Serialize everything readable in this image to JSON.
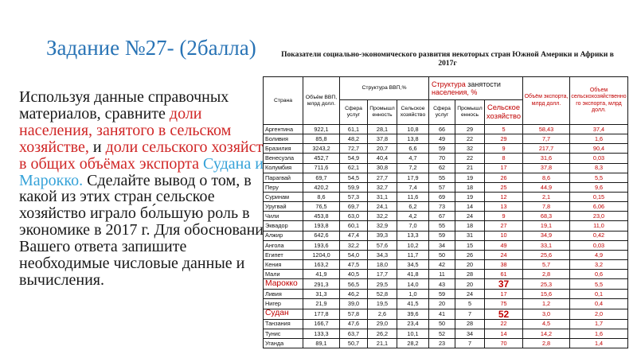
{
  "colors": {
    "title_blue": "#2873b5",
    "text_red": "#d02626",
    "text_blue": "#35a2d8",
    "table_red": "#c00000"
  },
  "title": "Задание №27- (2балла)",
  "table_caption": "Показатели социально-экономического развития некоторых стран Южной Америки и Африки в 2017г",
  "task_text_segments": [
    {
      "text": "Используя данные справочных материалов, сравните ",
      "style": "black"
    },
    {
      "text": "доли населения, занятого в сельском хозяйстве,",
      "style": "red"
    },
    {
      "text": " и ",
      "style": "black"
    },
    {
      "text": "доли сельского хозяйства в общих объёмах экспорта ",
      "style": "red"
    },
    {
      "text": "Судана и Марокко.",
      "style": "blue"
    },
    {
      "text": " Сделайте вывод о том, в какой из этих стран сельское хозяйство играло бо́льшую роль в экономике в 2017 г. Для обоснования Вашего ответа запишите необходимые числовые данные и вычисления.",
      "style": "black"
    }
  ],
  "table": {
    "header": {
      "col_country": "Страна",
      "col_gdp": "Объём ВВП, млрд долл.",
      "group_gdp_structure": "Структура ВВП,%",
      "group_employment_segments": [
        {
          "text": "Структура ",
          "style": "red"
        },
        {
          "text": "занятости",
          "style": "black"
        },
        {
          "text": " населения, %",
          "style": "red"
        }
      ],
      "sub_services_gdp": "Сфера услуг",
      "sub_industry_gdp": "Промышленность",
      "sub_agriculture_gdp": "Сельское хозяйство",
      "sub_services_emp": "Сфера услуг",
      "sub_industry_emp": "Промышленнось",
      "sub_agriculture_emp": "Сельское хозяйство",
      "col_export": "Объём экспорта,  млрд долл.",
      "col_agro_export": "Объем сельскохозяйственного экспорта, млрд долл."
    },
    "rows": [
      {
        "country": "Аргентина",
        "highlight": false,
        "values": [
          "922,1",
          "61,1",
          "28,1",
          "10,8",
          "66",
          "29",
          "5",
          "58,43",
          "37,4"
        ]
      },
      {
        "country": "Боливия",
        "highlight": false,
        "values": [
          "85,8",
          "48,2",
          "37,8",
          "13,8",
          "49",
          "22",
          "29",
          "7,7",
          "1,6"
        ]
      },
      {
        "country": "Бразилия",
        "highlight": false,
        "values": [
          "3243,2",
          "72,7",
          "20,7",
          "6,6",
          "59",
          "32",
          "9",
          "217,7",
          "90,4"
        ]
      },
      {
        "country": "Венесуэла",
        "highlight": false,
        "values": [
          "452,7",
          "54,9",
          "40,4",
          "4,7",
          "70",
          "22",
          "8",
          "31,6",
          "0,03"
        ]
      },
      {
        "country": "Колумбия",
        "highlight": false,
        "values": [
          "711,6",
          "62,1",
          "30,8",
          "7,2",
          "62",
          "21",
          "17",
          "37,8",
          "8,3"
        ]
      },
      {
        "country": "Парагвай",
        "highlight": false,
        "values": [
          "69,7",
          "54,5",
          "27,7",
          "17,9",
          "55",
          "19",
          "26",
          "8,6",
          "5,5"
        ]
      },
      {
        "country": "Перу",
        "highlight": false,
        "values": [
          "420,2",
          "59,9",
          "32,7",
          "7,4",
          "57",
          "18",
          "25",
          "44,9",
          "9,6"
        ]
      },
      {
        "country": "Суринам",
        "highlight": false,
        "values": [
          "8,6",
          "57,3",
          "31,1",
          "11,6",
          "69",
          "19",
          "12",
          "2,1",
          "0,15"
        ]
      },
      {
        "country": "Уругвай",
        "highlight": false,
        "values": [
          "76,5",
          "69,7",
          "24,1",
          "6,2",
          "73",
          "14",
          "13",
          "7,8",
          "6,06"
        ]
      },
      {
        "country": "Чили",
        "highlight": false,
        "values": [
          "453,8",
          "63,0",
          "32,2",
          "4,2",
          "67",
          "24",
          "9",
          "68,3",
          "23,0"
        ]
      },
      {
        "country": "Эквадор",
        "highlight": false,
        "values": [
          "193,8",
          "60,1",
          "32,9",
          "7,0",
          "55",
          "18",
          "27",
          "19,1",
          "11,0"
        ]
      },
      {
        "country": "Алжир",
        "highlight": false,
        "values": [
          "642,6",
          "47,4",
          "39,3",
          "13,3",
          "59",
          "31",
          "10",
          "34,9",
          "0,42"
        ]
      },
      {
        "country": "Ангола",
        "highlight": false,
        "values": [
          "193,6",
          "32,2",
          "57,6",
          "10,2",
          "34",
          "15",
          "49",
          "33,1",
          "0,03"
        ]
      },
      {
        "country": "Египет",
        "highlight": false,
        "values": [
          "1204,0",
          "54,0",
          "34,3",
          "11,7",
          "50",
          "26",
          "24",
          "25,6",
          "4,9"
        ]
      },
      {
        "country": "Кения",
        "highlight": false,
        "values": [
          "163,2",
          "47,5",
          "18,0",
          "34,5",
          "42",
          "20",
          "38",
          "5,7",
          "3,2"
        ]
      },
      {
        "country": "Мали",
        "highlight": false,
        "values": [
          "41,9",
          "40,5",
          "17,7",
          "41,8",
          "11",
          "28",
          "61",
          "2,8",
          "0,6"
        ]
      },
      {
        "country": "Марокко",
        "highlight": true,
        "values": [
          "291,3",
          "56,5",
          "29,5",
          "14,0",
          "43",
          "20",
          "37",
          "25,3",
          "5,5"
        ]
      },
      {
        "country": "Ливия",
        "highlight": false,
        "values": [
          "31,3",
          "46,2",
          "52,8",
          "1,0",
          "59",
          "24",
          "17",
          "15,6",
          "0,1"
        ]
      },
      {
        "country": "Нигер",
        "highlight": false,
        "values": [
          "21,9",
          "39,0",
          "19,5",
          "41,5",
          "20",
          "5",
          "75",
          "1,2",
          "0,4"
        ]
      },
      {
        "country": "Судан",
        "highlight": true,
        "values": [
          "177,8",
          "57,8",
          "2,6",
          "39,6",
          "41",
          "7",
          "52",
          "3,0",
          "2,0"
        ]
      },
      {
        "country": "Танзания",
        "highlight": false,
        "values": [
          "166,7",
          "47,6",
          "29,0",
          "23,4",
          "50",
          "28",
          "22",
          "4,5",
          "1,7"
        ]
      },
      {
        "country": "Тунис",
        "highlight": false,
        "values": [
          "133,3",
          "63,7",
          "26,2",
          "10,1",
          "52",
          "34",
          "14",
          "14,2",
          "1,6"
        ]
      },
      {
        "country": "Уганда",
        "highlight": false,
        "values": [
          "89,1",
          "50,7",
          "21,1",
          "28,2",
          "23",
          "7",
          "70",
          "2,8",
          "1,4"
        ]
      }
    ]
  }
}
